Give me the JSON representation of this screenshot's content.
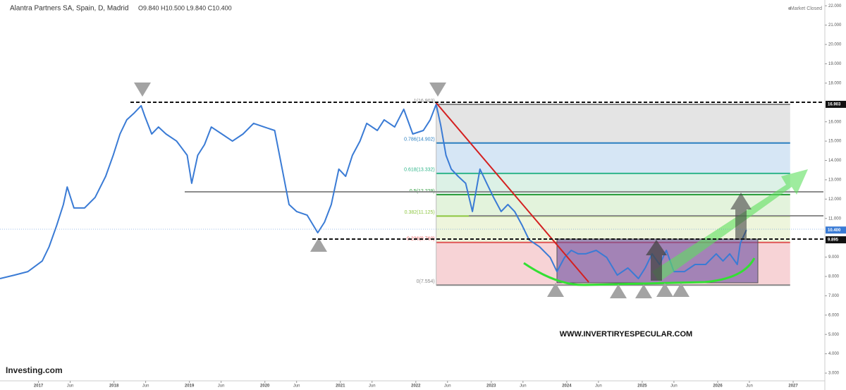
{
  "chart_data": {
    "type": "line",
    "title": "Alantra Partners SA, Spain, D, Madrid",
    "ohlc": "O9.840  H10.500  L9.840  C10.400",
    "status": "Market Closed",
    "source": "Investing.com",
    "watermark": "WWW.INVERTIRYESPECULAR.COM",
    "x": [
      2016.49,
      2016.68,
      2016.86,
      2017.05,
      2017.14,
      2017.24,
      2017.33,
      2017.38,
      2017.47,
      2017.61,
      2017.75,
      2017.89,
      2017.99,
      2018.08,
      2018.17,
      2018.27,
      2018.36,
      2018.41,
      2018.5,
      2018.59,
      2018.69,
      2018.83,
      2018.97,
      2019.03,
      2019.11,
      2019.2,
      2019.29,
      2019.43,
      2019.57,
      2019.71,
      2019.85,
      2019.99,
      2020.13,
      2020.23,
      2020.32,
      2020.42,
      2020.56,
      2020.7,
      2020.79,
      2020.88,
      2020.98,
      2021.07,
      2021.16,
      2021.26,
      2021.35,
      2021.49,
      2021.58,
      2021.72,
      2021.84,
      2021.96,
      2022.1,
      2022.19,
      2022.27,
      2022.33,
      2022.4,
      2022.47,
      2022.56,
      2022.66,
      2022.75,
      2022.85,
      2022.94,
      2023.03,
      2023.13,
      2023.22,
      2023.31,
      2023.41,
      2023.5,
      2023.64,
      2023.78,
      2023.87,
      2023.97,
      2024.06,
      2024.15,
      2024.25,
      2024.39,
      2024.53,
      2024.67,
      2024.81,
      2024.95,
      2025.04,
      2025.13,
      2025.23,
      2025.32,
      2025.42,
      2025.56,
      2025.7,
      2025.84,
      2025.98,
      2026.07,
      2026.16,
      2026.26,
      2026.3,
      2026.38
    ],
    "series": [
      {
        "color": "#3a7bd5",
        "values": [
          7.89,
          8.07,
          8.25,
          8.8,
          9.53,
          10.63,
          11.72,
          12.63,
          11.54,
          11.54,
          12.09,
          13.18,
          14.27,
          15.37,
          16.1,
          16.46,
          16.83,
          16.28,
          15.37,
          15.73,
          15.37,
          15,
          14.27,
          12.82,
          14.27,
          14.82,
          15.73,
          15.37,
          15,
          15.37,
          15.92,
          15.73,
          15.55,
          13.55,
          11.72,
          11.36,
          11.17,
          10.26,
          10.81,
          11.72,
          13.55,
          13.18,
          14.27,
          15,
          15.92,
          15.55,
          16.1,
          15.73,
          16.65,
          15.37,
          15.55,
          16.1,
          16.903,
          15.83,
          14.27,
          13.55,
          13.18,
          12.82,
          11.36,
          13.55,
          12.82,
          12.09,
          11.36,
          11.72,
          11.36,
          10.63,
          9.9,
          9.53,
          8.98,
          8.25,
          8.98,
          9.35,
          9.17,
          9.17,
          9.35,
          8.98,
          8.07,
          8.44,
          7.89,
          8.44,
          9.17,
          8.62,
          9.35,
          8.25,
          8.25,
          8.62,
          8.62,
          9.17,
          8.8,
          9.17,
          8.62,
          9.71,
          10.4
        ]
      }
    ],
    "xlim": [
      2016.49,
      2027.42
    ],
    "ylim": [
      2.6,
      22.3
    ],
    "xticks": [
      2017,
      {
        "value": 2017.42,
        "label": "Jun"
      },
      2018,
      {
        "value": 2018.42,
        "label": "Jun"
      },
      2019,
      {
        "value": 2019.42,
        "label": "Jun"
      },
      2020,
      {
        "value": 2020.42,
        "label": "Jun"
      },
      2021,
      {
        "value": 2021.42,
        "label": "Jun"
      },
      2022,
      {
        "value": 2022.42,
        "label": "Jun"
      },
      2023,
      {
        "value": 2023.42,
        "label": "Jun"
      },
      2024,
      {
        "value": 2024.42,
        "label": "Jun"
      },
      2025,
      {
        "value": 2025.42,
        "label": "Jun"
      },
      2026,
      {
        "value": 2026.42,
        "label": "Jun"
      },
      2027
    ],
    "yticks": [
      {
        "value": 3,
        "label": "3.000"
      },
      {
        "value": 4,
        "label": "4.000"
      },
      {
        "value": 5,
        "label": "5.000"
      },
      {
        "value": 6,
        "label": "6.000"
      },
      {
        "value": 7,
        "label": "7.000"
      },
      {
        "value": 8,
        "label": "8.000"
      },
      {
        "value": 9,
        "label": "9.000"
      },
      {
        "value": 11,
        "label": "11.000"
      },
      {
        "value": 12,
        "label": "12.000"
      },
      {
        "value": 13,
        "label": "13.000"
      },
      {
        "value": 14,
        "label": "14.000"
      },
      {
        "value": 15,
        "label": "15.000"
      },
      {
        "value": 16,
        "label": "16.000"
      },
      {
        "value": 18,
        "label": "18.000"
      },
      {
        "value": 19,
        "label": "19.000"
      },
      {
        "value": 20,
        "label": "20.000"
      },
      {
        "value": 21,
        "label": "21.000"
      },
      {
        "value": 22,
        "label": "22.000"
      }
    ],
    "price_labels": [
      {
        "value": 16.903,
        "label": "16.903",
        "color": "#111111"
      },
      {
        "value": 10.4,
        "label": "10.400",
        "color": "#3a7bd5"
      },
      {
        "value": 9.895,
        "label": "9.895",
        "color": "#111111"
      }
    ],
    "fib": {
      "xrange": [
        2022.27,
        2026.96
      ],
      "levels": [
        {
          "label": "0(7.554)",
          "value": 7.554,
          "color": "#888888",
          "fill": "#f7d3d6"
        },
        {
          "label": "0.236(9.760)",
          "value": 9.76,
          "color": "#e05555",
          "fill": "#eef5dc"
        },
        {
          "label": "0.382(11.125)",
          "value": 11.125,
          "color": "#8cc63f",
          "fill": "#e3f3dc"
        },
        {
          "label": "0.5(12.229)",
          "value": 12.229,
          "color": "#2e9e3e",
          "fill": "#dcf1e6"
        },
        {
          "label": "0.618(13.332)",
          "value": 13.332,
          "color": "#2fb58a",
          "fill": "#d6e6f5"
        },
        {
          "label": "0.786(14.902)",
          "value": 14.902,
          "color": "#2a7fc0",
          "fill": "#e4e4e4"
        },
        {
          "label": "1(16.903)",
          "value": 16.903,
          "color": "#888888"
        }
      ]
    }
  }
}
